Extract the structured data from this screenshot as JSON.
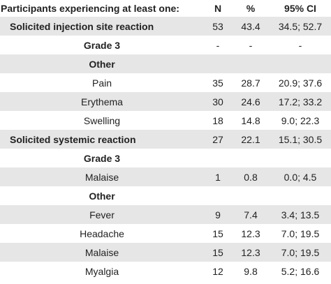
{
  "header": {
    "label": "Participants experiencing at least one:",
    "n": "N",
    "pct": "%",
    "ci": "95% CI"
  },
  "rows": [
    {
      "label": "Solicited injection site reaction",
      "n": "53",
      "pct": "43.4",
      "ci": "34.5; 52.7"
    },
    {
      "label": "Grade 3",
      "n": "-",
      "pct": "-",
      "ci": "-"
    },
    {
      "label": "Other",
      "n": "",
      "pct": "",
      "ci": ""
    },
    {
      "label": "Pain",
      "n": "35",
      "pct": "28.7",
      "ci": "20.9; 37.6"
    },
    {
      "label": "Erythema",
      "n": "30",
      "pct": "24.6",
      "ci": "17.2; 33.2"
    },
    {
      "label": "Swelling",
      "n": "18",
      "pct": "14.8",
      "ci": "9.0; 22.3"
    },
    {
      "label": "Solicited systemic reaction",
      "n": "27",
      "pct": "22.1",
      "ci": "15.1; 30.5"
    },
    {
      "label": "Grade 3",
      "n": "",
      "pct": "",
      "ci": ""
    },
    {
      "label": "Malaise",
      "n": "1",
      "pct": "0.8",
      "ci": "0.0; 4.5"
    },
    {
      "label": "Other",
      "n": "",
      "pct": "",
      "ci": ""
    },
    {
      "label": "Fever",
      "n": "9",
      "pct": "7.4",
      "ci": "3.4; 13.5"
    },
    {
      "label": "Headache",
      "n": "15",
      "pct": "12.3",
      "ci": "7.0; 19.5"
    },
    {
      "label": "Malaise",
      "n": "15",
      "pct": "12.3",
      "ci": "7.0; 19.5"
    },
    {
      "label": "Myalgia",
      "n": "12",
      "pct": "9.8",
      "ci": "5.2; 16.6"
    }
  ]
}
